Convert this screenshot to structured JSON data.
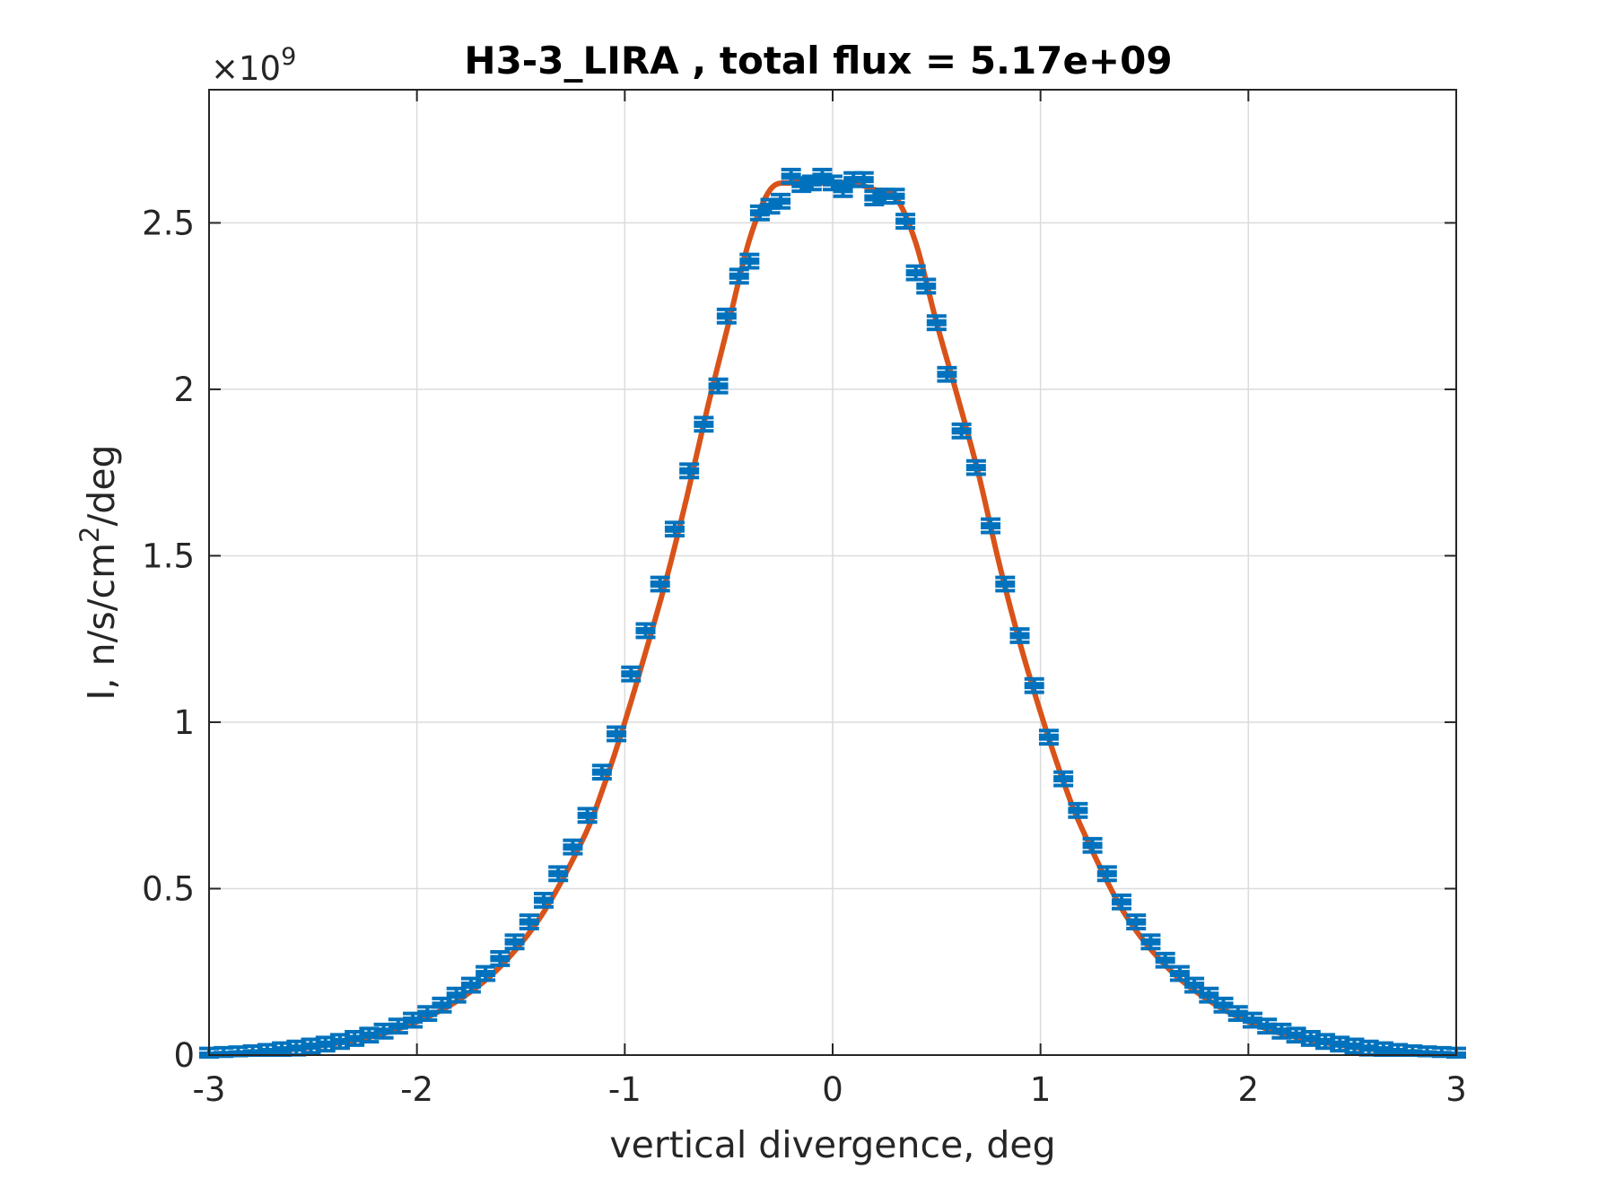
{
  "chart_data": {
    "type": "line",
    "title": "H3-3_LIRA , total flux =  5.17e+09",
    "xlabel": "vertical divergence, deg",
    "ylabel_main": "I, n/s/cm",
    "ylabel_sup": "2",
    "ylabel_tail": "/deg",
    "exponent_prefix": "×10",
    "exponent_power": "9",
    "xlim": [
      -3,
      3
    ],
    "ylim": [
      0,
      2.9
    ],
    "xticks": [
      -3,
      -2,
      -1,
      0,
      1,
      2,
      3
    ],
    "xtick_labels": [
      "-3",
      "-2",
      "-1",
      "0",
      "1",
      "2",
      "3"
    ],
    "yticks": [
      0,
      0.5,
      1,
      1.5,
      2,
      2.5
    ],
    "ytick_labels": [
      "0",
      "0.5",
      "1",
      "1.5",
      "2",
      "2.5"
    ],
    "grid": true,
    "colors": {
      "fit_line": "#D95319",
      "data_markers": "#0072BD",
      "axes": "#262626",
      "grid": "#dcdcdc"
    },
    "series": [
      {
        "kind": "errorbar",
        "x": [
          -3.0,
          -2.93,
          -2.86,
          -2.79,
          -2.72,
          -2.65,
          -2.58,
          -2.51,
          -2.44,
          -2.37,
          -2.3,
          -2.23,
          -2.16,
          -2.09,
          -2.02,
          -1.95,
          -1.88,
          -1.81,
          -1.74,
          -1.67,
          -1.6,
          -1.53,
          -1.46,
          -1.39,
          -1.32,
          -1.25,
          -1.18,
          -1.11,
          -1.04,
          -0.97,
          -0.9,
          -0.83,
          -0.76,
          -0.69,
          -0.62,
          -0.55,
          -0.51,
          -0.45,
          -0.4,
          -0.35,
          -0.3,
          -0.25,
          -0.2,
          -0.15,
          -0.1,
          -0.05,
          0.0,
          0.05,
          0.1,
          0.15,
          0.2,
          0.25,
          0.3,
          0.35,
          0.4,
          0.45,
          0.5,
          0.55,
          0.62,
          0.69,
          0.76,
          0.83,
          0.9,
          0.97,
          1.04,
          1.11,
          1.18,
          1.25,
          1.32,
          1.39,
          1.46,
          1.53,
          1.6,
          1.67,
          1.74,
          1.81,
          1.88,
          1.95,
          2.02,
          2.09,
          2.16,
          2.23,
          2.3,
          2.37,
          2.44,
          2.51,
          2.58,
          2.65,
          2.72,
          2.79,
          2.86,
          2.93,
          3.0
        ],
        "y": [
          0.0,
          0.002,
          0.004,
          0.007,
          0.011,
          0.016,
          0.021,
          0.027,
          0.033,
          0.041,
          0.05,
          0.06,
          0.072,
          0.087,
          0.105,
          0.125,
          0.15,
          0.18,
          0.21,
          0.245,
          0.29,
          0.34,
          0.4,
          0.465,
          0.545,
          0.625,
          0.72,
          0.85,
          0.965,
          1.145,
          1.275,
          1.415,
          1.58,
          1.755,
          1.895,
          2.01,
          2.22,
          2.34,
          2.385,
          2.53,
          2.55,
          2.565,
          2.64,
          2.615,
          2.62,
          2.64,
          2.62,
          2.6,
          2.63,
          2.63,
          2.575,
          2.58,
          2.58,
          2.505,
          2.35,
          2.31,
          2.2,
          2.045,
          1.875,
          1.765,
          1.59,
          1.415,
          1.26,
          1.11,
          0.955,
          0.83,
          0.735,
          0.63,
          0.545,
          0.46,
          0.4,
          0.34,
          0.285,
          0.245,
          0.21,
          0.18,
          0.15,
          0.125,
          0.105,
          0.087,
          0.072,
          0.06,
          0.05,
          0.041,
          0.033,
          0.027,
          0.021,
          0.016,
          0.011,
          0.007,
          0.004,
          0.002,
          0.0
        ],
        "err": 0.02
      },
      {
        "kind": "fit",
        "x": [
          -3.0,
          -2.8,
          -2.6,
          -2.4,
          -2.2,
          -2.0,
          -1.8,
          -1.6,
          -1.4,
          -1.2,
          -1.1,
          -1.0,
          -0.9,
          -0.8,
          -0.7,
          -0.6,
          -0.5,
          -0.4,
          -0.3,
          -0.2,
          -0.1,
          0.0,
          0.1,
          0.2,
          0.3,
          0.4,
          0.5,
          0.6,
          0.7,
          0.8,
          0.9,
          1.0,
          1.1,
          1.2,
          1.4,
          1.6,
          1.8,
          2.0,
          2.2,
          2.4,
          2.6,
          2.8,
          3.0
        ],
        "y": [
          0.0,
          0.006,
          0.017,
          0.034,
          0.058,
          0.1,
          0.165,
          0.265,
          0.42,
          0.65,
          0.81,
          1.0,
          1.21,
          1.43,
          1.68,
          1.95,
          2.2,
          2.45,
          2.6,
          2.62,
          2.62,
          2.62,
          2.62,
          2.6,
          2.58,
          2.44,
          2.2,
          1.98,
          1.75,
          1.48,
          1.24,
          1.03,
          0.84,
          0.68,
          0.43,
          0.27,
          0.168,
          0.1,
          0.058,
          0.034,
          0.017,
          0.006,
          0.0
        ]
      }
    ]
  }
}
